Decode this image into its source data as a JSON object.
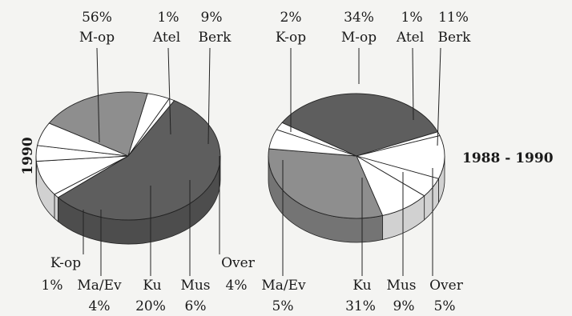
{
  "colors": {
    "background": "#f4f4f2",
    "slice_dark": "#5e5e5e",
    "slice_mid": "#8e8e8e",
    "slice_light": "#ffffff",
    "edge": "#222222"
  },
  "chart_data": [
    {
      "type": "pie",
      "style": "3d-pie",
      "title": "1990",
      "slices": [
        {
          "name": "M-op",
          "value": 56,
          "label": "56%",
          "color": "#5e5e5e"
        },
        {
          "name": "Atel",
          "value": 1,
          "label": "1%",
          "color": "#ffffff"
        },
        {
          "name": "Berk",
          "value": 9,
          "label": "9%",
          "color": "#ffffff"
        },
        {
          "name": "Over",
          "value": 4,
          "label": "4%",
          "color": "#ffffff"
        },
        {
          "name": "Mus",
          "value": 6,
          "label": "6%",
          "color": "#ffffff"
        },
        {
          "name": "Ku",
          "value": 20,
          "label": "20%",
          "color": "#8e8e8e"
        },
        {
          "name": "Ma/Ev",
          "value": 4,
          "label": "4%",
          "color": "#ffffff"
        },
        {
          "name": "K-op",
          "value": 1,
          "label": "1%",
          "color": "#ffffff"
        }
      ]
    },
    {
      "type": "pie",
      "style": "3d-pie",
      "title": "1988 - 1990",
      "slices": [
        {
          "name": "K-op",
          "value": 2,
          "label": "2%",
          "color": "#ffffff"
        },
        {
          "name": "M-op",
          "value": 34,
          "label": "34%",
          "color": "#5e5e5e"
        },
        {
          "name": "Atel",
          "value": 1,
          "label": "1%",
          "color": "#ffffff"
        },
        {
          "name": "Berk",
          "value": 11,
          "label": "11%",
          "color": "#ffffff"
        },
        {
          "name": "Over",
          "value": 5,
          "label": "5%",
          "color": "#ffffff"
        },
        {
          "name": "Mus",
          "value": 9,
          "label": "9%",
          "color": "#ffffff"
        },
        {
          "name": "Ku",
          "value": 31,
          "label": "31%",
          "color": "#8e8e8e"
        },
        {
          "name": "Ma/Ev",
          "value": 5,
          "label": "5%",
          "color": "#ffffff"
        }
      ]
    }
  ]
}
